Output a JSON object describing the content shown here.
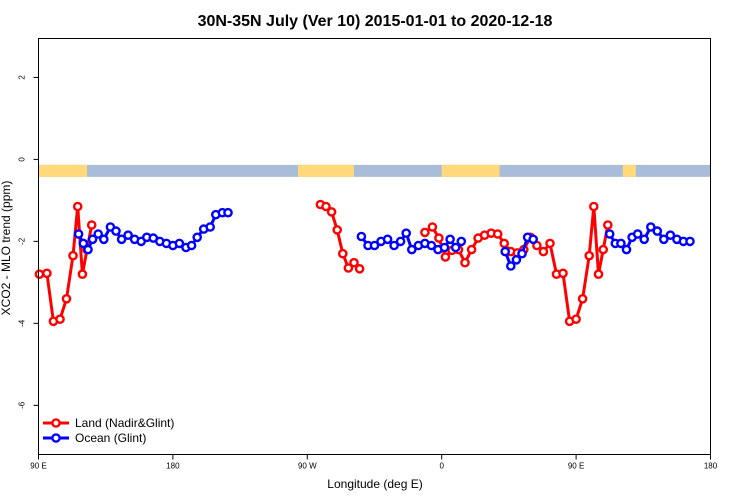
{
  "chart_data": {
    "type": "line",
    "title": "30N-35N July (Ver 10)   2015-01-01 to 2020-12-18",
    "xlabel": "Longitude (deg E)",
    "ylabel": "XCO2 - MLO trend (ppm)",
    "xlim": [
      90,
      450
    ],
    "ylim": [
      -7.2,
      2.95
    ],
    "yticks": [
      2,
      0,
      -2,
      -4,
      -6
    ],
    "xticks": [
      {
        "value": 90,
        "label": "90 E"
      },
      {
        "value": 180,
        "label": "180"
      },
      {
        "value": 270,
        "label": "90 W"
      },
      {
        "value": 360,
        "label": "0"
      },
      {
        "value": 450,
        "label": "90 E"
      },
      {
        "value": 540,
        "label": "180"
      }
    ],
    "xticks_display": [
      {
        "value": 90,
        "label": "90 E"
      },
      {
        "value": 162,
        "label": "180"
      },
      {
        "value": 234,
        "label": "90 W"
      },
      {
        "value": 306,
        "label": "0"
      },
      {
        "value": 378,
        "label": "90 E"
      },
      {
        "value": 450,
        "label": "180"
      }
    ],
    "grid": false,
    "legend_position": "bottom-left",
    "land_mask": {
      "y": -0.28,
      "land_color": "#FFD97A",
      "ocean_color": "#A9BCD8",
      "land_ranges": [
        [
          90,
          116
        ],
        [
          229,
          259
        ],
        [
          306,
          337
        ],
        [
          403,
          410
        ],
        [
          454,
          486
        ]
      ]
    },
    "series": [
      {
        "name": "Land (Nadir&Glint)",
        "color": "#FF0000",
        "segments": [
          [
            [
              90.5,
              -2.8
            ],
            [
              94.5,
              -2.78
            ],
            [
              98,
              -3.95
            ],
            [
              101.5,
              -3.9
            ],
            [
              105,
              -3.4
            ],
            [
              108.5,
              -2.35
            ],
            [
              111,
              -1.15
            ],
            [
              113.5,
              -2.8
            ],
            [
              116,
              -2.2
            ],
            [
              118.5,
              -1.6
            ]
          ],
          [
            [
              241,
              -1.1
            ],
            [
              244,
              -1.15
            ],
            [
              247,
              -1.28
            ],
            [
              250,
              -1.72
            ],
            [
              253,
              -2.3
            ],
            [
              256,
              -2.65
            ],
            [
              259,
              -2.52
            ],
            [
              262,
              -2.67
            ]
          ],
          [
            [
              297,
              -1.78
            ],
            [
              301,
              -1.65
            ],
            [
              304.5,
              -1.92
            ],
            [
              308,
              -2.38
            ],
            [
              311.5,
              -2.22
            ],
            [
              315,
              -2.2
            ],
            [
              318.5,
              -2.52
            ],
            [
              322,
              -2.2
            ],
            [
              325.5,
              -1.92
            ],
            [
              329,
              -1.85
            ],
            [
              332.5,
              -1.8
            ],
            [
              336,
              -1.82
            ],
            [
              339.5,
              -2.05
            ],
            [
              343,
              -2.25
            ],
            [
              346.5,
              -2.28
            ],
            [
              350,
              -2.2
            ],
            [
              353.5,
              -1.9
            ],
            [
              357,
              -2.1
            ],
            [
              360.5,
              -2.25
            ],
            [
              364,
              -2.05
            ],
            [
              367.5,
              -2.8
            ],
            [
              371,
              -2.78
            ],
            [
              374.5,
              -3.95
            ],
            [
              378,
              -3.9
            ],
            [
              381.5,
              -3.4
            ],
            [
              385,
              -2.35
            ],
            [
              387.5,
              -1.15
            ],
            [
              390,
              -2.8
            ],
            [
              392.5,
              -2.2
            ],
            [
              395,
              -1.6
            ]
          ]
        ]
      },
      {
        "name": "Ocean (Glint)",
        "color": "#0000FF",
        "segments": [
          [
            [
              111.5,
              -1.82
            ],
            [
              114,
              -2.05
            ],
            [
              116.5,
              -2.2
            ],
            [
              119,
              -1.95
            ],
            [
              122,
              -1.82
            ],
            [
              125,
              -1.95
            ],
            [
              128.5,
              -1.65
            ],
            [
              131.5,
              -1.75
            ],
            [
              134.5,
              -1.95
            ],
            [
              138,
              -1.85
            ],
            [
              141.5,
              -1.95
            ],
            [
              145,
              -2.0
            ],
            [
              148,
              -1.9
            ],
            [
              151.5,
              -1.92
            ],
            [
              155,
              -2.0
            ],
            [
              158.5,
              -2.05
            ],
            [
              162,
              -2.1
            ],
            [
              165.5,
              -2.05
            ],
            [
              169,
              -2.15
            ],
            [
              172,
              -2.1
            ],
            [
              175,
              -1.9
            ],
            [
              178.5,
              -1.7
            ],
            [
              182,
              -1.65
            ],
            [
              185,
              -1.35
            ],
            [
              188.5,
              -1.3
            ],
            [
              191.5,
              -1.3
            ]
          ],
          [
            [
              263,
              -1.88
            ],
            [
              266.5,
              -2.1
            ],
            [
              270,
              -2.1
            ],
            [
              273.5,
              -2.0
            ],
            [
              277,
              -1.95
            ],
            [
              280.5,
              -2.1
            ],
            [
              284,
              -2.0
            ],
            [
              287,
              -1.8
            ],
            [
              290,
              -2.2
            ],
            [
              293.5,
              -2.1
            ],
            [
              297,
              -2.05
            ],
            [
              300.5,
              -2.1
            ],
            [
              304,
              -2.2
            ],
            [
              307.5,
              -2.15
            ],
            [
              310.5,
              -1.95
            ],
            [
              313.5,
              -2.15
            ],
            [
              316.5,
              -2.0
            ]
          ],
          [
            [
              340,
              -2.25
            ],
            [
              343,
              -2.6
            ],
            [
              346,
              -2.45
            ],
            [
              349,
              -2.3
            ],
            [
              352,
              -1.9
            ],
            [
              355,
              -1.95
            ]
          ],
          [
            [
              396,
              -1.82
            ],
            [
              399,
              -2.05
            ],
            [
              402,
              -2.05
            ],
            [
              405,
              -2.2
            ],
            [
              408,
              -1.9
            ],
            [
              411,
              -1.82
            ],
            [
              414.5,
              -1.95
            ],
            [
              418,
              -1.65
            ],
            [
              421.5,
              -1.75
            ],
            [
              425,
              -1.95
            ],
            [
              428.5,
              -1.85
            ],
            [
              432,
              -1.95
            ],
            [
              435.5,
              -2.0
            ],
            [
              439,
              -2.0
            ]
          ]
        ]
      }
    ]
  }
}
